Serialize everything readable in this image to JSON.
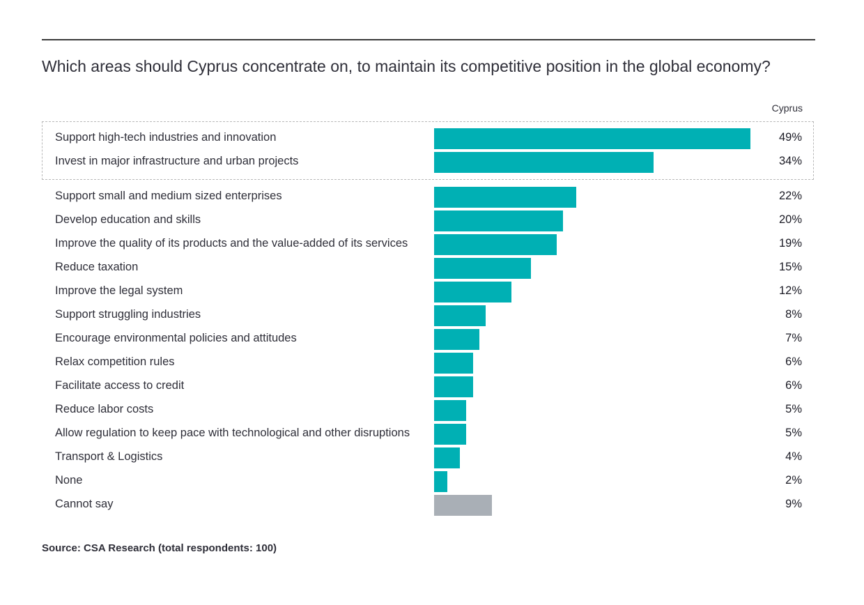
{
  "chart_data": {
    "type": "bar",
    "orientation": "horizontal",
    "title": "Which areas should Cyprus concentrate on, to maintain its competitive position in the global economy?",
    "series": [
      {
        "name": "Cyprus",
        "values": [
          49,
          34,
          22,
          20,
          19,
          15,
          12,
          8,
          7,
          6,
          6,
          5,
          5,
          4,
          2,
          9
        ]
      }
    ],
    "categories": [
      "Support high-tech industries and innovation",
      "Invest in major infrastructure and urban projects",
      "Support small and medium sized enterprises",
      "Develop education and skills",
      "Improve the quality of its products and the value-added of its services",
      "Reduce taxation",
      "Improve the legal system",
      "Support struggling industries",
      "Encourage environmental policies and attitudes",
      "Relax competition rules",
      "Facilitate access to credit",
      "Reduce labor costs",
      "Allow regulation to keep pace with technological and other disruptions",
      "Transport & Logistics",
      "None",
      "Cannot say"
    ],
    "value_labels": [
      "49%",
      "34%",
      "22%",
      "20%",
      "19%",
      "15%",
      "12%",
      "8%",
      "7%",
      "6%",
      "6%",
      "5%",
      "5%",
      "4%",
      "2%",
      "9%"
    ],
    "unit": "%",
    "xlim": [
      0,
      49
    ],
    "highlighted_categories": [
      0,
      1
    ],
    "colors": {
      "bar": "#00b0b4",
      "bar_other": "#a9afb6",
      "grey_categories": [
        15
      ]
    },
    "grid": false,
    "legend": "none",
    "source": "Source: CSA Research (total respondents: 100)"
  }
}
